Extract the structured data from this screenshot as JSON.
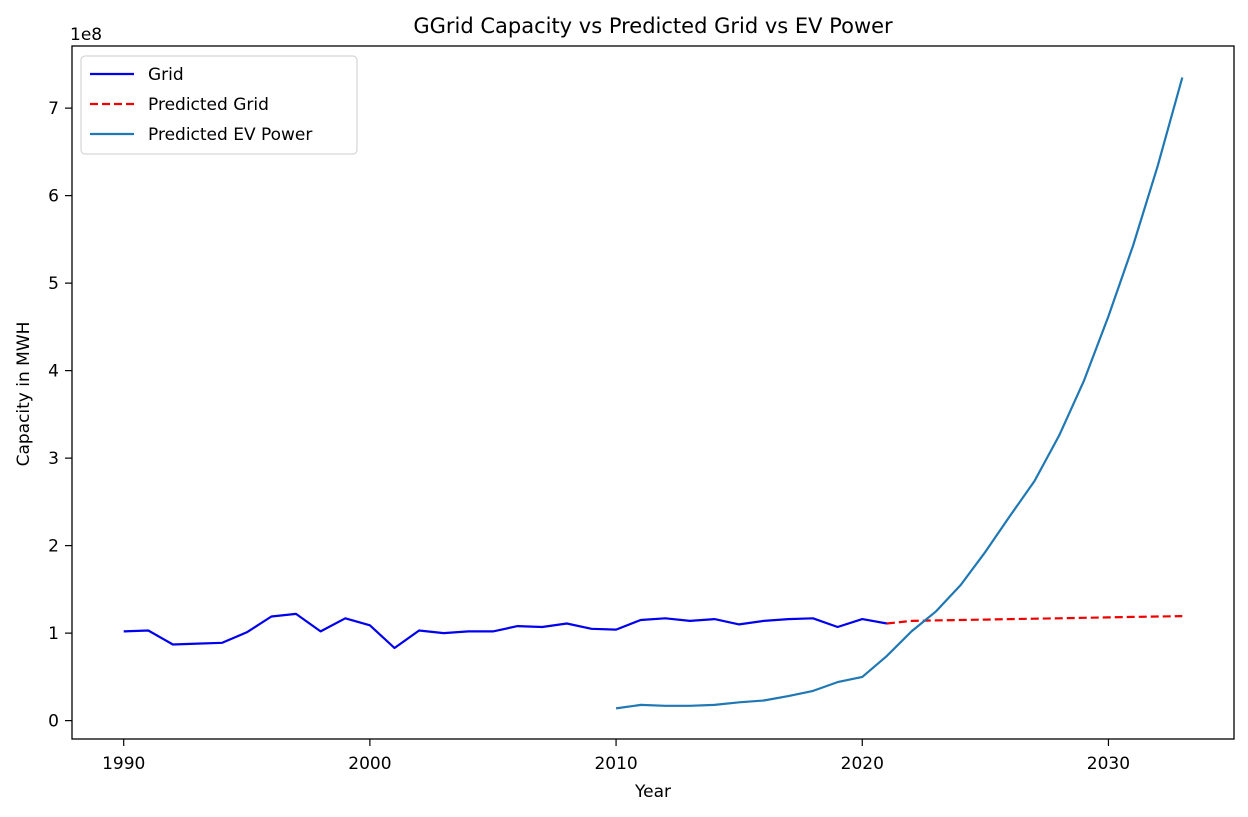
{
  "chart_data": {
    "type": "line",
    "title": "GGrid Capacity vs Predicted Grid vs EV Power",
    "xlabel": "Year",
    "ylabel": "Capacity in MWH",
    "y_offset_label": "1e8",
    "xlim": [
      1987.9,
      2035.1
    ],
    "ylim": [
      -0.21,
      7.71
    ],
    "x_ticks": [
      1990,
      2000,
      2010,
      2020,
      2030
    ],
    "y_ticks": [
      0,
      1,
      2,
      3,
      4,
      5,
      6,
      7
    ],
    "legend_position": "upper-left",
    "series": [
      {
        "name": "Grid",
        "color": "#0000ee",
        "style": "solid",
        "x": [
          1990,
          1991,
          1992,
          1993,
          1994,
          1995,
          1996,
          1997,
          1998,
          1999,
          2000,
          2001,
          2002,
          2003,
          2004,
          2005,
          2006,
          2007,
          2008,
          2009,
          2010,
          2011,
          2012,
          2013,
          2014,
          2015,
          2016,
          2017,
          2018,
          2019,
          2020,
          2021
        ],
        "values": [
          1.02,
          1.03,
          0.87,
          0.88,
          0.89,
          1.01,
          1.19,
          1.22,
          1.02,
          1.17,
          1.09,
          0.83,
          1.03,
          1.0,
          1.02,
          1.02,
          1.08,
          1.07,
          1.11,
          1.05,
          1.04,
          1.15,
          1.17,
          1.14,
          1.16,
          1.1,
          1.14,
          1.16,
          1.17,
          1.07,
          1.16,
          1.11
        ]
      },
      {
        "name": "Predicted Grid",
        "color": "#ee0000",
        "style": "dashed",
        "x": [
          2021,
          2022,
          2023,
          2024,
          2025,
          2026,
          2027,
          2028,
          2029,
          2030,
          2031,
          2032,
          2033
        ],
        "values": [
          1.11,
          1.14,
          1.145,
          1.15,
          1.155,
          1.16,
          1.165,
          1.17,
          1.175,
          1.18,
          1.185,
          1.19,
          1.195
        ]
      },
      {
        "name": "Predicted EV Power",
        "color": "#1f77b4",
        "style": "solid",
        "x": [
          2010,
          2011,
          2012,
          2013,
          2014,
          2015,
          2016,
          2017,
          2018,
          2019,
          2020,
          2021,
          2022,
          2023,
          2024,
          2025,
          2026,
          2027,
          2028,
          2029,
          2030,
          2031,
          2032,
          2033
        ],
        "values": [
          0.14,
          0.18,
          0.17,
          0.17,
          0.18,
          0.21,
          0.23,
          0.28,
          0.34,
          0.44,
          0.5,
          0.74,
          1.02,
          1.25,
          1.55,
          1.93,
          2.34,
          2.74,
          3.26,
          3.88,
          4.62,
          5.43,
          6.34,
          7.35
        ]
      }
    ]
  }
}
